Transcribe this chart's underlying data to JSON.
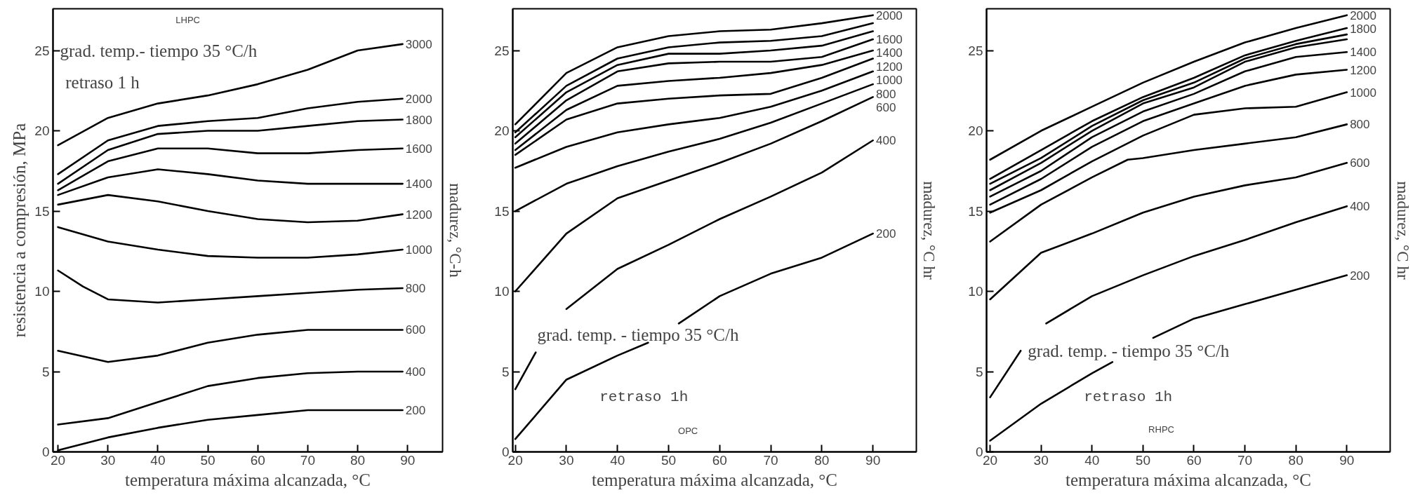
{
  "chart_data": [
    {
      "type": "line",
      "xlabel": "temperatura máxima alcanzada, °C",
      "ylabel": "resistencia a compresión, MPa",
      "legend_title": "madurez, °C-h",
      "annotations": [
        "LHPC",
        "grad. temp.- tiempo 35 °C/h",
        "retraso 1 h"
      ],
      "x": [
        20,
        30,
        40,
        50,
        60,
        70,
        80,
        89
      ],
      "xlim": [
        19,
        97
      ],
      "xticks": [
        20,
        30,
        40,
        50,
        60,
        70,
        80,
        90
      ],
      "ylim": [
        0,
        27.6
      ],
      "yticks": [
        0,
        5,
        10,
        15,
        20,
        25
      ],
      "grid": false,
      "line_style": "solid",
      "series": [
        {
          "name": "3000",
          "color": "#000000",
          "values": [
            19.1,
            20.8,
            21.7,
            22.2,
            22.9,
            23.8,
            25.0,
            25.4
          ]
        },
        {
          "name": "2000",
          "color": "#000000",
          "values": [
            17.3,
            19.4,
            20.3,
            20.6,
            20.8,
            21.4,
            21.8,
            22.0
          ]
        },
        {
          "name": "1800",
          "color": "#000000",
          "values": [
            16.7,
            18.8,
            19.8,
            20.0,
            20.0,
            20.3,
            20.6,
            20.7
          ]
        },
        {
          "name": "1600",
          "color": "#000000",
          "values": [
            16.3,
            18.1,
            18.9,
            18.9,
            18.6,
            18.6,
            18.8,
            18.9
          ]
        },
        {
          "name": "1400",
          "color": "#000000",
          "values": [
            16.0,
            17.1,
            17.6,
            17.3,
            16.9,
            16.7,
            16.7,
            16.7
          ]
        },
        {
          "name": "1200",
          "color": "#000000",
          "values": [
            15.4,
            16.0,
            15.6,
            15.0,
            14.5,
            14.3,
            14.4,
            14.8
          ]
        },
        {
          "name": "1000",
          "color": "#000000",
          "values": [
            14.0,
            13.1,
            12.6,
            12.2,
            12.1,
            12.1,
            12.3,
            12.6
          ]
        },
        {
          "name": "800",
          "color": "#000000",
          "x": [
            20,
            25,
            30,
            40,
            50,
            60,
            70,
            80,
            89
          ],
          "values": [
            11.3,
            10.3,
            9.5,
            9.3,
            9.5,
            9.7,
            9.9,
            10.1,
            10.2
          ]
        },
        {
          "name": "600",
          "color": "#000000",
          "values": [
            6.3,
            5.6,
            6.0,
            6.8,
            7.3,
            7.6,
            7.6,
            7.6
          ]
        },
        {
          "name": "400",
          "color": "#000000",
          "values": [
            1.7,
            2.1,
            3.1,
            4.1,
            4.6,
            4.9,
            5.0,
            5.0
          ]
        },
        {
          "name": "200",
          "color": "#000000",
          "values": [
            0.1,
            0.9,
            1.5,
            2.0,
            2.3,
            2.6,
            2.6,
            2.6
          ]
        }
      ]
    },
    {
      "type": "line",
      "xlabel": "temperatura máxima alcanzada, °C",
      "legend_title": "madurez, °C hr",
      "annotations": [
        "grad. temp. - tiempo 35 °C/h",
        "retraso 1h",
        "OPC"
      ],
      "x": [
        20,
        30,
        40,
        50,
        60,
        70,
        80,
        90
      ],
      "xlim": [
        19.5,
        98.5
      ],
      "xticks": [
        20,
        30,
        40,
        50,
        60,
        70,
        80,
        90
      ],
      "ylim": [
        0,
        27.6
      ],
      "yticks": [
        0,
        5,
        10,
        15,
        20,
        25
      ],
      "grid": false,
      "line_style": "solid",
      "series": [
        {
          "name": "2000",
          "color": "#000000",
          "values": [
            20.4,
            23.6,
            25.2,
            25.9,
            26.2,
            26.3,
            26.7,
            27.2
          ]
        },
        {
          "color": "#000000",
          "values": [
            19.9,
            22.8,
            24.5,
            25.2,
            25.5,
            25.6,
            25.9,
            26.7
          ]
        },
        {
          "color": "#000000",
          "values": [
            19.6,
            22.4,
            24.1,
            24.8,
            24.8,
            25.0,
            25.3,
            26.2
          ]
        },
        {
          "name": "1600",
          "color": "#000000",
          "values": [
            19.2,
            21.9,
            23.7,
            24.2,
            24.3,
            24.3,
            24.6,
            25.7
          ]
        },
        {
          "name": "1400",
          "color": "#000000",
          "values": [
            18.8,
            21.3,
            22.8,
            23.1,
            23.3,
            23.6,
            24.1,
            25.0
          ]
        },
        {
          "name": "1200",
          "color": "#000000",
          "values": [
            18.5,
            20.7,
            21.7,
            22.0,
            22.2,
            22.3,
            23.3,
            24.5
          ]
        },
        {
          "name": "1000",
          "color": "#000000",
          "values": [
            17.7,
            19.0,
            19.9,
            20.4,
            20.8,
            21.5,
            22.5,
            23.7
          ]
        },
        {
          "name": "800",
          "color": "#000000",
          "values": [
            15.0,
            16.7,
            17.8,
            18.7,
            19.5,
            20.5,
            21.7,
            22.9
          ]
        },
        {
          "name": "600",
          "color": "#000000",
          "values": [
            10.0,
            13.6,
            15.8,
            16.9,
            18.0,
            19.2,
            20.6,
            22.1
          ]
        },
        {
          "name": "400",
          "color": "#000000",
          "x": [
            20,
            24,
            27,
            30,
            40,
            50,
            60,
            70,
            80,
            90
          ],
          "values": [
            3.9,
            6.2,
            null,
            8.9,
            11.4,
            12.9,
            14.5,
            15.9,
            17.4,
            19.4
          ]
        },
        {
          "name": "200",
          "color": "#000000",
          "x": [
            20,
            30,
            40,
            46,
            49,
            52,
            60,
            70,
            80,
            90
          ],
          "values": [
            0.8,
            4.5,
            6.0,
            6.8,
            null,
            8.0,
            9.7,
            11.1,
            12.1,
            13.6
          ]
        }
      ]
    },
    {
      "type": "line",
      "xlabel": "temperatura máxima alcanzada, °C",
      "legend_title": "madurez, °C hr",
      "annotations": [
        "grad. temp. - tiempo 35 °C/h",
        "retraso 1h",
        "RHPC"
      ],
      "x": [
        20,
        30,
        40,
        50,
        60,
        70,
        80,
        90
      ],
      "xlim": [
        19.3,
        98.5
      ],
      "xticks": [
        20,
        30,
        40,
        50,
        60,
        70,
        80,
        90
      ],
      "ylim": [
        0,
        27.6
      ],
      "yticks": [
        0,
        5,
        10,
        15,
        20,
        25
      ],
      "grid": false,
      "line_style": "solid",
      "series": [
        {
          "name": "2000",
          "color": "#000000",
          "values": [
            18.2,
            20.0,
            21.5,
            23.0,
            24.3,
            25.5,
            26.4,
            27.2
          ]
        },
        {
          "name": "1800",
          "color": "#000000",
          "values": [
            17.0,
            18.8,
            20.6,
            22.1,
            23.3,
            24.7,
            25.6,
            26.4
          ]
        },
        {
          "color": "#000000",
          "values": [
            16.7,
            18.3,
            20.3,
            21.9,
            23.0,
            24.5,
            25.4,
            26.0
          ]
        },
        {
          "color": "#000000",
          "values": [
            16.3,
            18.0,
            20.0,
            21.7,
            22.7,
            24.3,
            25.2,
            25.7
          ]
        },
        {
          "name": "1400",
          "color": "#000000",
          "values": [
            15.9,
            17.5,
            19.6,
            21.2,
            22.3,
            23.7,
            24.6,
            24.9
          ]
        },
        {
          "name": "1200",
          "color": "#000000",
          "values": [
            15.4,
            17.0,
            19.0,
            20.6,
            21.7,
            22.8,
            23.5,
            23.8
          ]
        },
        {
          "name": "1000",
          "color": "#000000",
          "values": [
            14.9,
            16.3,
            18.1,
            19.7,
            21.0,
            21.4,
            21.5,
            22.4
          ]
        },
        {
          "name": "800",
          "color": "#000000",
          "x": [
            20,
            30,
            40,
            47,
            50,
            60,
            70,
            80,
            90
          ],
          "values": [
            13.1,
            15.4,
            17.1,
            18.2,
            18.3,
            18.8,
            19.2,
            19.6,
            20.4
          ]
        },
        {
          "name": "600",
          "color": "#000000",
          "values": [
            9.5,
            12.4,
            13.6,
            14.9,
            15.9,
            16.6,
            17.1,
            18.0
          ]
        },
        {
          "name": "400",
          "color": "#000000",
          "x": [
            20,
            26,
            28,
            31,
            40,
            50,
            60,
            70,
            80,
            90
          ],
          "values": [
            3.4,
            6.3,
            null,
            8.0,
            9.7,
            11.0,
            12.2,
            13.2,
            14.3,
            15.3
          ]
        },
        {
          "name": "200",
          "color": "#000000",
          "x": [
            20,
            30,
            40,
            44,
            48,
            52,
            60,
            70,
            80,
            90
          ],
          "values": [
            0.7,
            3.0,
            4.9,
            5.6,
            null,
            7.1,
            8.3,
            9.2,
            10.1,
            11.0
          ]
        }
      ]
    }
  ]
}
